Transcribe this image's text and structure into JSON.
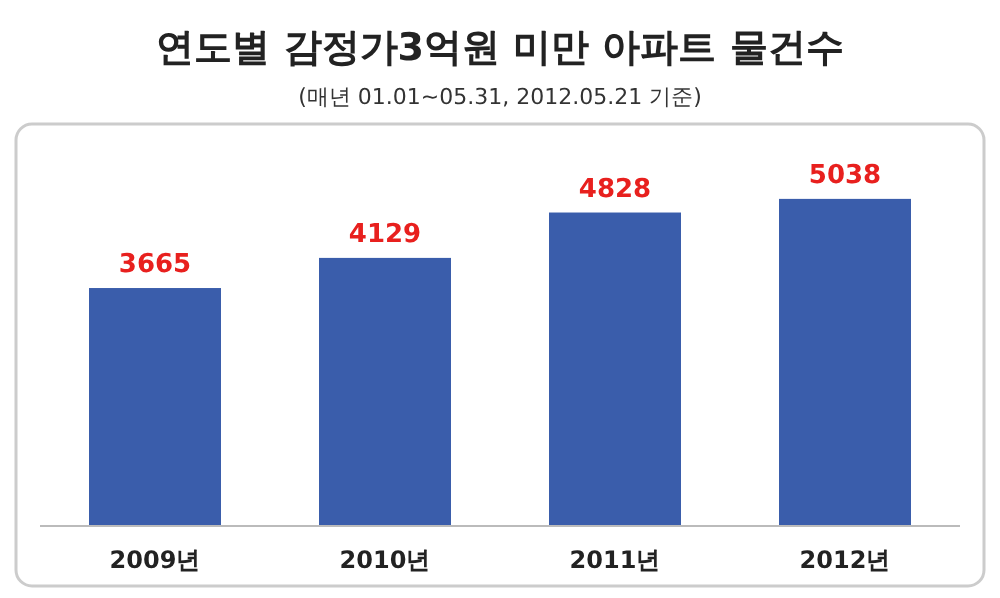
{
  "chart_data": {
    "type": "bar",
    "title": "연도별 감정가3억원 미만 아파트 물건수",
    "subtitle": "(매년 01.01~05.31, 2012.05.21 기준)",
    "categories": [
      "2009년",
      "2010년",
      "2011년",
      "2012년"
    ],
    "values": [
      3665,
      4129,
      4828,
      5038
    ],
    "color": "#3a5dab",
    "data_labels": true
  }
}
